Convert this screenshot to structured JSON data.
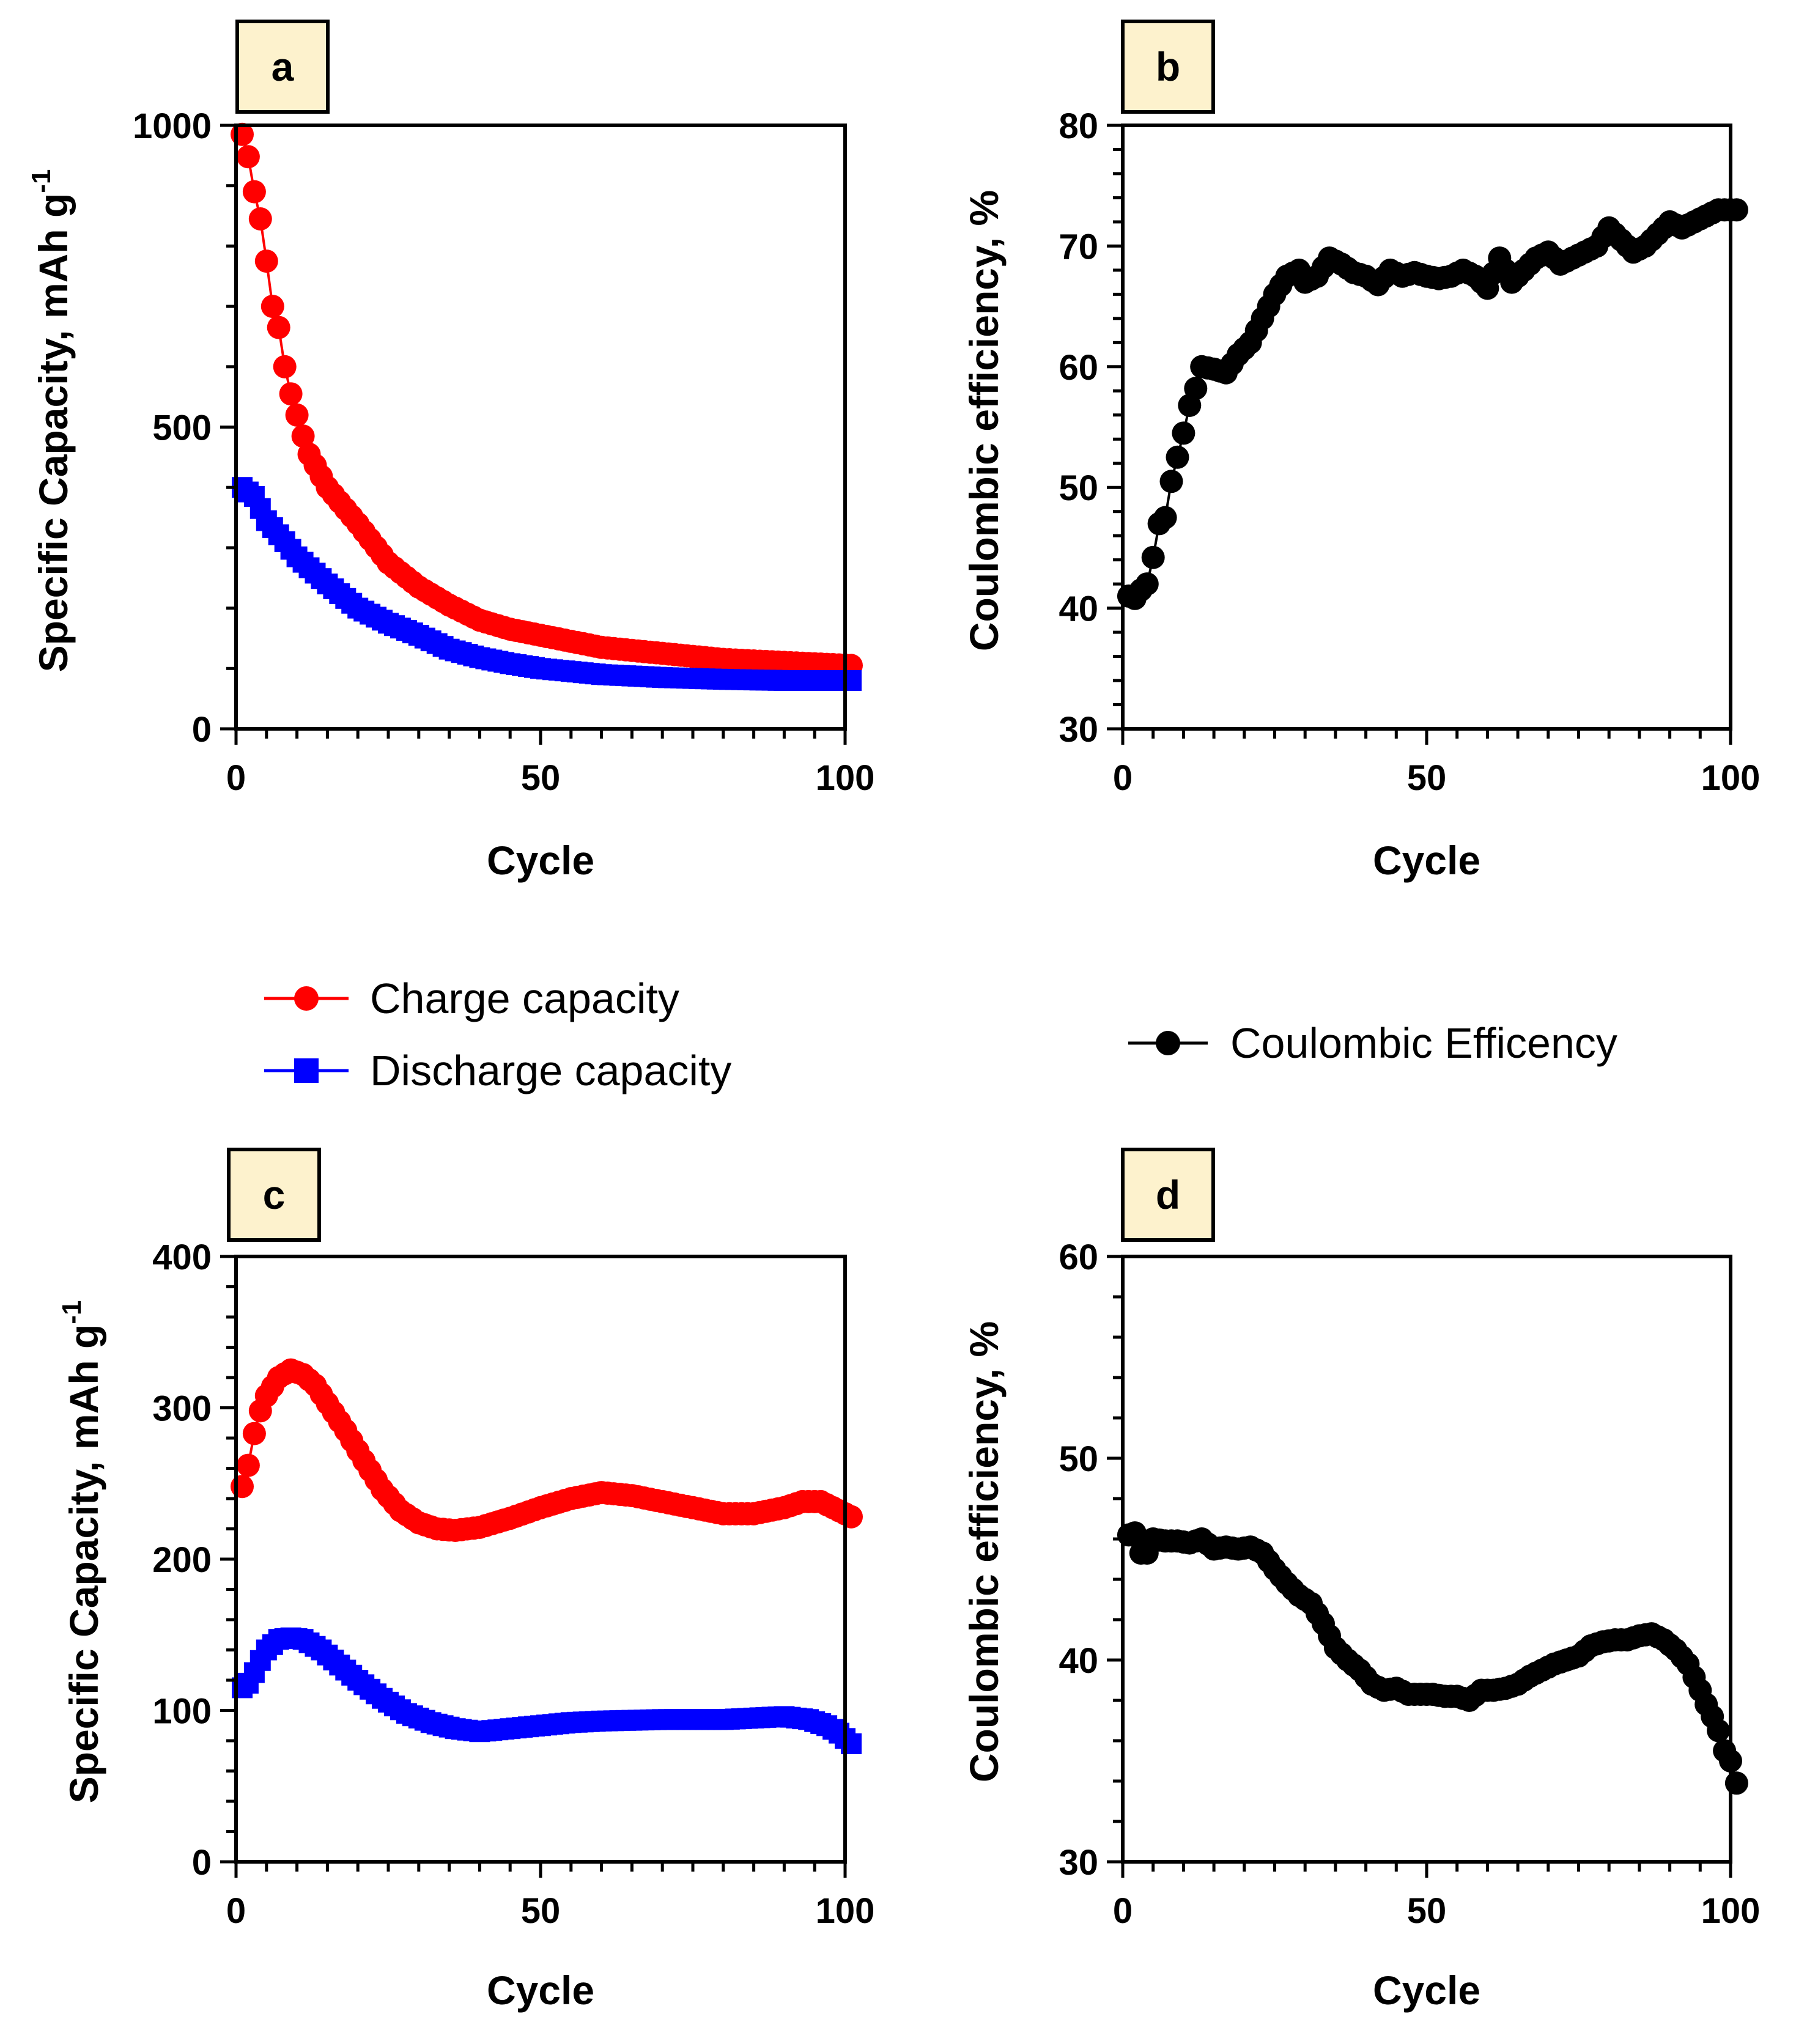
{
  "colors": {
    "charge": "#ff0000",
    "discharge": "#0000ff",
    "efficiency": "#000000",
    "label_box_fill": "#fdf2cd"
  },
  "legends": {
    "capacity": {
      "charge_label": "Charge capacity",
      "discharge_label": "Discharge capacity"
    },
    "efficiency": {
      "label": "Coulombic Efficency"
    }
  },
  "chart_data": [
    {
      "id": "a",
      "panel_label": "a",
      "type": "line",
      "xlabel": "Cycle",
      "ylabel": "Specific Capacity, mAh g",
      "ylabel_sup": "-1",
      "xlim": [
        0,
        100
      ],
      "ylim": [
        0,
        1000
      ],
      "xticks": [
        0,
        50,
        100
      ],
      "yticks": [
        0,
        500,
        1000
      ],
      "x_minor_step": 5,
      "y_minor_step": 100,
      "series": [
        {
          "name": "Charge capacity",
          "marker": "circle",
          "color": "#ff0000",
          "anchors": [
            [
              1,
              985
            ],
            [
              2,
              948
            ],
            [
              3,
              890
            ],
            [
              4,
              845
            ],
            [
              5,
              775
            ],
            [
              6,
              700
            ],
            [
              7,
              665
            ],
            [
              8,
              600
            ],
            [
              9,
              555
            ],
            [
              10,
              520
            ],
            [
              11,
              485
            ],
            [
              12,
              455
            ],
            [
              15,
              400
            ],
            [
              20,
              340
            ],
            [
              25,
              275
            ],
            [
              30,
              235
            ],
            [
              35,
              205
            ],
            [
              40,
              180
            ],
            [
              45,
              165
            ],
            [
              50,
              155
            ],
            [
              60,
              135
            ],
            [
              70,
              125
            ],
            [
              80,
              115
            ],
            [
              90,
              110
            ],
            [
              101,
              105
            ]
          ]
        },
        {
          "name": "Discharge capacity",
          "marker": "square",
          "color": "#0000ff",
          "anchors": [
            [
              1,
              400
            ],
            [
              3,
              385
            ],
            [
              5,
              345
            ],
            [
              8,
              310
            ],
            [
              10,
              285
            ],
            [
              15,
              240
            ],
            [
              20,
              200
            ],
            [
              25,
              175
            ],
            [
              30,
              155
            ],
            [
              35,
              132
            ],
            [
              40,
              118
            ],
            [
              45,
              108
            ],
            [
              50,
              100
            ],
            [
              60,
              90
            ],
            [
              70,
              85
            ],
            [
              80,
              82
            ],
            [
              90,
              80
            ],
            [
              101,
              80
            ]
          ]
        }
      ]
    },
    {
      "id": "b",
      "panel_label": "b",
      "type": "line",
      "xlabel": "Cycle",
      "ylabel": "Coulombic efficiency, %",
      "xlim": [
        0,
        100
      ],
      "ylim": [
        30,
        80
      ],
      "xticks": [
        0,
        50,
        100
      ],
      "yticks": [
        30,
        40,
        50,
        60,
        70,
        80
      ],
      "x_minor_step": 5,
      "y_minor_step": 2,
      "series": [
        {
          "name": "Coulombic Efficency",
          "marker": "circle",
          "color": "#000000",
          "anchors": [
            [
              1,
              41.0
            ],
            [
              2,
              40.8
            ],
            [
              3,
              41.5
            ],
            [
              4,
              42.0
            ],
            [
              5,
              44.2
            ],
            [
              6,
              47.0
            ],
            [
              7,
              47.5
            ],
            [
              8,
              50.5
            ],
            [
              9,
              52.5
            ],
            [
              10,
              54.5
            ],
            [
              11,
              56.8
            ],
            [
              12,
              58.2
            ],
            [
              13,
              60.0
            ],
            [
              15,
              59.8
            ],
            [
              17,
              59.5
            ],
            [
              19,
              61.0
            ],
            [
              21,
              62.0
            ],
            [
              23,
              64.0
            ],
            [
              25,
              66.0
            ],
            [
              27,
              67.5
            ],
            [
              29,
              68.0
            ],
            [
              30,
              67.0
            ],
            [
              32,
              67.5
            ],
            [
              34,
              69.0
            ],
            [
              36,
              68.5
            ],
            [
              38,
              67.8
            ],
            [
              40,
              67.5
            ],
            [
              42,
              66.8
            ],
            [
              44,
              68.0
            ],
            [
              46,
              67.5
            ],
            [
              48,
              67.8
            ],
            [
              50,
              67.5
            ],
            [
              52,
              67.3
            ],
            [
              54,
              67.5
            ],
            [
              56,
              68.0
            ],
            [
              58,
              67.5
            ],
            [
              60,
              66.5
            ],
            [
              62,
              69.0
            ],
            [
              64,
              67.0
            ],
            [
              66,
              68.0
            ],
            [
              68,
              69.0
            ],
            [
              70,
              69.5
            ],
            [
              72,
              68.5
            ],
            [
              74,
              69.0
            ],
            [
              76,
              69.5
            ],
            [
              78,
              70.0
            ],
            [
              80,
              71.5
            ],
            [
              82,
              70.5
            ],
            [
              84,
              69.5
            ],
            [
              86,
              70.0
            ],
            [
              88,
              71.0
            ],
            [
              90,
              72.0
            ],
            [
              92,
              71.5
            ],
            [
              94,
              72.0
            ],
            [
              96,
              72.5
            ],
            [
              98,
              73.0
            ],
            [
              101,
              73.0
            ]
          ]
        }
      ]
    },
    {
      "id": "c",
      "panel_label": "c",
      "type": "line",
      "xlabel": "Cycle",
      "ylabel": "Specific Capacity, mAh g",
      "ylabel_sup": "-1",
      "xlim": [
        0,
        100
      ],
      "ylim": [
        0,
        400
      ],
      "xticks": [
        0,
        50,
        100
      ],
      "yticks": [
        0,
        100,
        200,
        300,
        400
      ],
      "x_minor_step": 5,
      "y_minor_step": 20,
      "series": [
        {
          "name": "Charge capacity",
          "marker": "circle",
          "color": "#ff0000",
          "anchors": [
            [
              1,
              248
            ],
            [
              2,
              262
            ],
            [
              3,
              283
            ],
            [
              4,
              298
            ],
            [
              5,
              308
            ],
            [
              7,
              320
            ],
            [
              9,
              325
            ],
            [
              11,
              322
            ],
            [
              13,
              315
            ],
            [
              15,
              303
            ],
            [
              18,
              285
            ],
            [
              21,
              265
            ],
            [
              24,
              246
            ],
            [
              27,
              232
            ],
            [
              30,
              224
            ],
            [
              33,
              220
            ],
            [
              36,
              219
            ],
            [
              40,
              221
            ],
            [
              45,
              227
            ],
            [
              50,
              234
            ],
            [
              55,
              240
            ],
            [
              60,
              244
            ],
            [
              65,
              242
            ],
            [
              70,
              238
            ],
            [
              75,
              234
            ],
            [
              80,
              230
            ],
            [
              85,
              230
            ],
            [
              90,
              234
            ],
            [
              93,
              238
            ],
            [
              96,
              238
            ],
            [
              98,
              234
            ],
            [
              101,
              228
            ]
          ]
        },
        {
          "name": "Discharge capacity",
          "marker": "square",
          "color": "#0000ff",
          "anchors": [
            [
              1,
              115
            ],
            [
              2,
              118
            ],
            [
              3,
              125
            ],
            [
              4,
              133
            ],
            [
              5,
              140
            ],
            [
              7,
              147
            ],
            [
              9,
              148
            ],
            [
              11,
              147
            ],
            [
              14,
              140
            ],
            [
              17,
              130
            ],
            [
              20,
              120
            ],
            [
              24,
              108
            ],
            [
              28,
              98
            ],
            [
              32,
              92
            ],
            [
              36,
              88
            ],
            [
              40,
              86
            ],
            [
              45,
              88
            ],
            [
              50,
              90
            ],
            [
              55,
              92
            ],
            [
              60,
              93
            ],
            [
              70,
              94
            ],
            [
              80,
              94
            ],
            [
              85,
              95
            ],
            [
              90,
              96
            ],
            [
              94,
              94
            ],
            [
              97,
              90
            ],
            [
              99,
              85
            ],
            [
              101,
              78
            ]
          ]
        }
      ]
    },
    {
      "id": "d",
      "panel_label": "d",
      "type": "line",
      "xlabel": "Cycle",
      "ylabel": "Coulombic efficiency, %",
      "xlim": [
        0,
        100
      ],
      "ylim": [
        30,
        60
      ],
      "xticks": [
        0,
        50,
        100
      ],
      "yticks": [
        30,
        40,
        50,
        60
      ],
      "x_minor_step": 5,
      "y_minor_step": 2,
      "series": [
        {
          "name": "Coulombic Efficency",
          "marker": "circle",
          "color": "#000000",
          "anchors": [
            [
              1,
              46.2
            ],
            [
              2,
              46.3
            ],
            [
              3,
              45.3
            ],
            [
              4,
              45.3
            ],
            [
              5,
              46.0
            ],
            [
              7,
              45.9
            ],
            [
              9,
              45.9
            ],
            [
              11,
              45.8
            ],
            [
              13,
              46.0
            ],
            [
              15,
              45.5
            ],
            [
              17,
              45.6
            ],
            [
              19,
              45.5
            ],
            [
              21,
              45.6
            ],
            [
              23,
              45.3
            ],
            [
              25,
              44.5
            ],
            [
              27,
              43.8
            ],
            [
              29,
              43.2
            ],
            [
              31,
              42.8
            ],
            [
              33,
              41.8
            ],
            [
              35,
              40.6
            ],
            [
              37,
              40.0
            ],
            [
              39,
              39.5
            ],
            [
              41,
              38.8
            ],
            [
              43,
              38.5
            ],
            [
              45,
              38.6
            ],
            [
              47,
              38.3
            ],
            [
              49,
              38.3
            ],
            [
              51,
              38.3
            ],
            [
              53,
              38.2
            ],
            [
              55,
              38.2
            ],
            [
              57,
              38.0
            ],
            [
              59,
              38.5
            ],
            [
              61,
              38.5
            ],
            [
              63,
              38.6
            ],
            [
              65,
              38.8
            ],
            [
              67,
              39.2
            ],
            [
              69,
              39.5
            ],
            [
              71,
              39.8
            ],
            [
              73,
              40.0
            ],
            [
              75,
              40.2
            ],
            [
              77,
              40.7
            ],
            [
              79,
              40.9
            ],
            [
              81,
              41.0
            ],
            [
              83,
              41.0
            ],
            [
              85,
              41.2
            ],
            [
              87,
              41.3
            ],
            [
              89,
              41.0
            ],
            [
              91,
              40.5
            ],
            [
              93,
              39.8
            ],
            [
              95,
              38.5
            ],
            [
              96,
              37.8
            ],
            [
              97,
              37.2
            ],
            [
              98,
              36.5
            ],
            [
              99,
              35.5
            ],
            [
              100,
              35.0
            ],
            [
              101,
              33.9
            ]
          ]
        }
      ]
    }
  ]
}
